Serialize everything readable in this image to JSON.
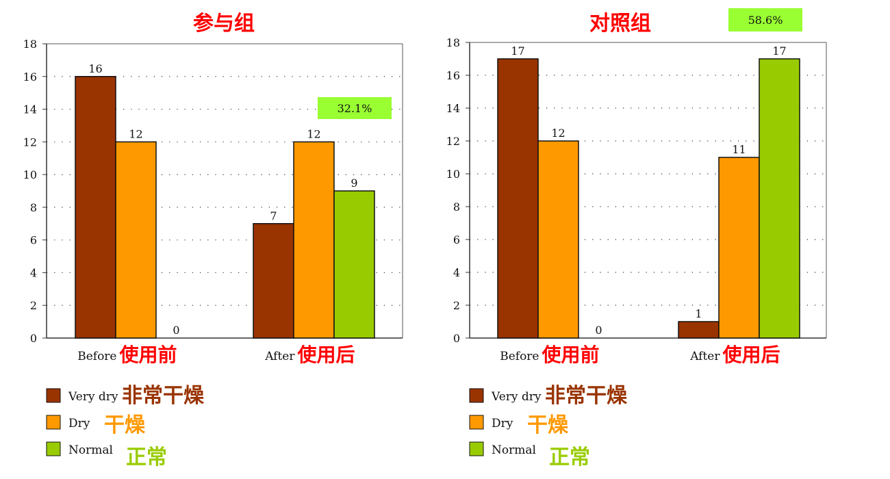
{
  "colors": {
    "very_dry": "#993300",
    "dry": "#ff9900",
    "normal": "#99cc00",
    "title_red": "#ff0000",
    "badge_bg": "#99ff33",
    "grid": "#333333"
  },
  "chart_data": [
    {
      "type": "bar",
      "title": "参与组",
      "categories": [
        "Before",
        "After"
      ],
      "category_labels_cn": [
        "使用前",
        "使用后"
      ],
      "series": [
        {
          "name": "Very dry",
          "name_cn": "非常干燥",
          "values": [
            16,
            7
          ]
        },
        {
          "name": "Dry",
          "name_cn": "干燥",
          "values": [
            12,
            12
          ]
        },
        {
          "name": "Normal",
          "name_cn": "正常",
          "values": [
            0,
            9
          ]
        }
      ],
      "ylim": [
        0,
        18
      ],
      "yticks": [
        "0",
        "2",
        "4",
        "6",
        "8",
        "10",
        "12",
        "14",
        "16",
        "18"
      ],
      "grid": "dotted-horizontal",
      "legend": "bottom-left",
      "annotation": "32.1%"
    },
    {
      "type": "bar",
      "title": "对照组",
      "categories": [
        "Before",
        "After"
      ],
      "category_labels_cn": [
        "使用前",
        "使用后"
      ],
      "series": [
        {
          "name": "Very dry",
          "name_cn": "非常干燥",
          "values": [
            17,
            1
          ]
        },
        {
          "name": "Dry",
          "name_cn": "干燥",
          "values": [
            12,
            11
          ]
        },
        {
          "name": "Normal",
          "name_cn": "正常",
          "values": [
            0,
            17
          ]
        }
      ],
      "ylim": [
        0,
        18
      ],
      "yticks": [
        "0",
        "2",
        "4",
        "6",
        "8",
        "10",
        "12",
        "14",
        "16",
        "18"
      ],
      "grid": "dotted-horizontal",
      "legend": "bottom-left",
      "annotation": "58.6%"
    }
  ]
}
